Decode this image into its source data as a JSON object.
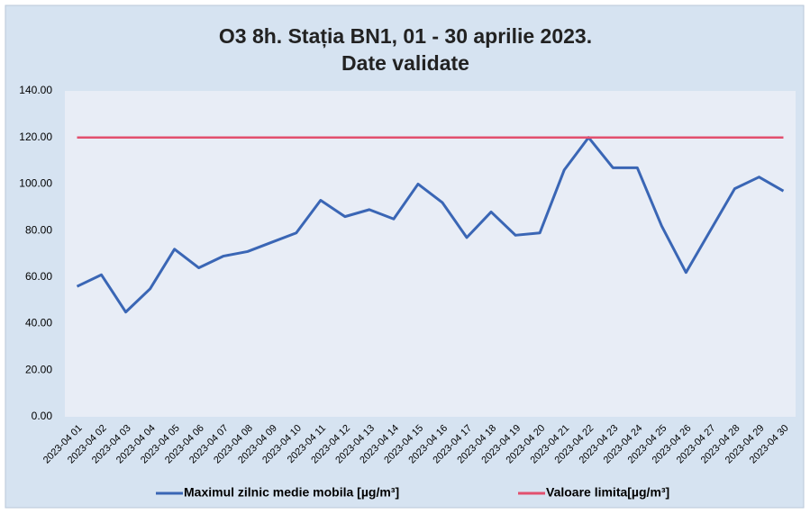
{
  "chart_data": {
    "type": "line",
    "title": "O3 8h. Stația BN1, 01 - 30 aprilie 2023.",
    "subtitle": "Date validate",
    "categories": [
      "2023-04 01",
      "2023-04 02",
      "2023-04 03",
      "2023-04 04",
      "2023-04 05",
      "2023-04 06",
      "2023-04 07",
      "2023-04 08",
      "2023-04 09",
      "2023-04 10",
      "2023-04 11",
      "2023-04 12",
      "2023-04 13",
      "2023-04 14",
      "2023-04 15",
      "2023-04 16",
      "2023-04 17",
      "2023-04 18",
      "2023-04 19",
      "2023-04 20",
      "2023-04 21",
      "2023-04 22",
      "2023-04 23",
      "2023-04 24",
      "2023-04 25",
      "2023-04 26",
      "2023-04 27",
      "2023-04 28",
      "2023-04 29",
      "2023-04 30"
    ],
    "series": [
      {
        "name": "Maximul zilnic medie mobila [µg/m³]",
        "color": "#3a66b5",
        "values": [
          56,
          61,
          45,
          55,
          72,
          64,
          69,
          71,
          75,
          79,
          93,
          86,
          89,
          85,
          100,
          92,
          77,
          88,
          78,
          79,
          106,
          120,
          107,
          107,
          82,
          62,
          80,
          98,
          103,
          97
        ]
      },
      {
        "name": "Valoare limita[µg/m³]",
        "color": "#e2506e",
        "values": [
          120,
          120,
          120,
          120,
          120,
          120,
          120,
          120,
          120,
          120,
          120,
          120,
          120,
          120,
          120,
          120,
          120,
          120,
          120,
          120,
          120,
          120,
          120,
          120,
          120,
          120,
          120,
          120,
          120,
          120
        ]
      }
    ],
    "ylim": [
      0,
      140
    ],
    "yticks": [
      {
        "value": 0,
        "label": "0.00"
      },
      {
        "value": 20,
        "label": "20.00"
      },
      {
        "value": 40,
        "label": "40.00"
      },
      {
        "value": 60,
        "label": "60.00"
      },
      {
        "value": 80,
        "label": "80.00"
      },
      {
        "value": 100,
        "label": "100.00"
      },
      {
        "value": 120,
        "label": "120.00"
      },
      {
        "value": 140,
        "label": "140.00"
      }
    ],
    "grid": false,
    "legend": "bottom"
  }
}
